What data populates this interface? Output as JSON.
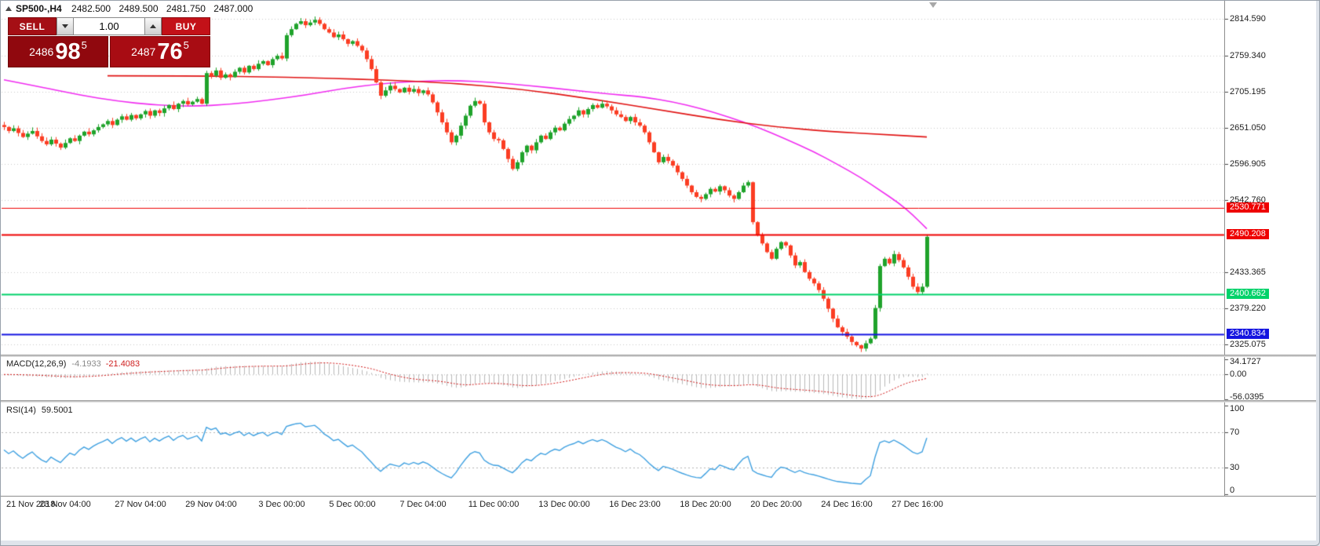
{
  "window": {
    "symbol_title": "SP500-,H4",
    "ohlc": {
      "open": "2482.500",
      "high": "2489.500",
      "low": "2481.750",
      "close": "2487.000"
    }
  },
  "one_click": {
    "sell_label": "SELL",
    "buy_label": "BUY",
    "volume": "1.00",
    "sell_price": {
      "prefix": "2486",
      "big": "98",
      "sup": "5"
    },
    "buy_price": {
      "prefix": "2487",
      "big": "76",
      "sup": "5"
    },
    "sell_color": "#a50f15",
    "buy_color": "#c31118"
  },
  "chart_data": {
    "type": "candlestick",
    "symbol": "SP500-",
    "timeframe": "H4",
    "price_axis": {
      "view_max": 2840.5,
      "view_min": 2310.0,
      "ticks": [
        "2814.590",
        "2759.340",
        "2705.195",
        "2651.050",
        "2596.905",
        "2542.760",
        "2433.365",
        "2379.220",
        "2325.075"
      ]
    },
    "candles": {
      "first_open": 2655,
      "up_color": "#1fa32b",
      "down_color": "#fb3d23",
      "closes": [
        2652,
        2646,
        2650,
        2643,
        2637,
        2642,
        2646,
        2638,
        2631,
        2626,
        2633,
        2627,
        2621,
        2628,
        2635,
        2631,
        2639,
        2645,
        2641,
        2647,
        2652,
        2656,
        2661,
        2655,
        2663,
        2668,
        2663,
        2670,
        2665,
        2671,
        2676,
        2669,
        2677,
        2673,
        2680,
        2685,
        2679,
        2687,
        2691,
        2686,
        2690,
        2694,
        2687,
        2733,
        2729,
        2737,
        2726,
        2731,
        2727,
        2735,
        2741,
        2734,
        2744,
        2739,
        2747,
        2751,
        2745,
        2754,
        2759,
        2755,
        2790,
        2799,
        2807,
        2811,
        2805,
        2809,
        2813,
        2807,
        2799,
        2794,
        2787,
        2791,
        2784,
        2777,
        2781,
        2774,
        2767,
        2754,
        2739,
        2719,
        2699,
        2707,
        2714,
        2709,
        2704,
        2711,
        2705,
        2709,
        2703,
        2707,
        2701,
        2689,
        2674,
        2659,
        2644,
        2629,
        2639,
        2654,
        2669,
        2684,
        2691,
        2687,
        2659,
        2644,
        2634,
        2632,
        2619,
        2604,
        2589,
        2599,
        2614,
        2624,
        2617,
        2629,
        2639,
        2634,
        2644,
        2651,
        2647,
        2657,
        2664,
        2669,
        2677,
        2671,
        2679,
        2685,
        2681,
        2687,
        2683,
        2677,
        2671,
        2667,
        2661,
        2667,
        2659,
        2654,
        2644,
        2629,
        2614,
        2599,
        2607,
        2601,
        2594,
        2584,
        2574,
        2564,
        2554,
        2547,
        2544,
        2551,
        2559,
        2555,
        2563,
        2557,
        2549,
        2544,
        2554,
        2564,
        2569,
        2509,
        2489,
        2477,
        2464,
        2454,
        2469,
        2479,
        2474,
        2459,
        2444,
        2449,
        2434,
        2424,
        2417,
        2407,
        2394,
        2379,
        2364,
        2351,
        2344,
        2337,
        2329,
        2324,
        2319,
        2327,
        2334,
        2380,
        2443,
        2454,
        2447,
        2461,
        2452,
        2441,
        2427,
        2412,
        2404,
        2412,
        2487
      ]
    },
    "h_lines": [
      {
        "price": 2530.771,
        "label": "2530.771",
        "color": "#ee0000",
        "width": 1
      },
      {
        "price": 2490.208,
        "label": "2490.208",
        "color": "#ee0000",
        "width": 2
      },
      {
        "price": 2400.662,
        "label": "2400.662",
        "color": "#00d26a",
        "width": 2
      },
      {
        "price": 2340.834,
        "label": "2340.834",
        "color": "#1414e0",
        "width": 2
      }
    ],
    "ma_lines": [
      {
        "name": "ma-fast-magenta",
        "color": "#f02cf0",
        "width": 1.6,
        "points": [
          [
            0,
            2723
          ],
          [
            8,
            2712
          ],
          [
            16,
            2700
          ],
          [
            24,
            2691
          ],
          [
            32,
            2685
          ],
          [
            40,
            2683
          ],
          [
            48,
            2686
          ],
          [
            56,
            2692
          ],
          [
            64,
            2700
          ],
          [
            72,
            2710
          ],
          [
            80,
            2717
          ],
          [
            88,
            2721
          ],
          [
            96,
            2722
          ],
          [
            104,
            2719
          ],
          [
            112,
            2714
          ],
          [
            120,
            2708
          ],
          [
            128,
            2702
          ],
          [
            136,
            2697
          ],
          [
            142,
            2690
          ],
          [
            148,
            2680
          ],
          [
            154,
            2667
          ],
          [
            160,
            2652
          ],
          [
            166,
            2634
          ],
          [
            172,
            2615
          ],
          [
            177,
            2596
          ],
          [
            182,
            2576
          ],
          [
            186,
            2557
          ],
          [
            190,
            2538
          ],
          [
            193,
            2520
          ],
          [
            196,
            2499
          ]
        ]
      },
      {
        "name": "ma-slow-red",
        "color": "#e01414",
        "width": 1.6,
        "points": [
          [
            22,
            2729
          ],
          [
            40,
            2729
          ],
          [
            60,
            2727
          ],
          [
            80,
            2723
          ],
          [
            95,
            2718
          ],
          [
            110,
            2709
          ],
          [
            125,
            2694
          ],
          [
            140,
            2677
          ],
          [
            152,
            2663
          ],
          [
            164,
            2652
          ],
          [
            176,
            2645
          ],
          [
            186,
            2641
          ],
          [
            196,
            2637
          ]
        ]
      }
    ],
    "time_axis": [
      {
        "i": 0,
        "label": "21 Nov 2018"
      },
      {
        "i": 13,
        "label": "23 Nov 04:00"
      },
      {
        "i": 29,
        "label": "27 Nov 04:00"
      },
      {
        "i": 44,
        "label": "29 Nov 04:00"
      },
      {
        "i": 59,
        "label": "3 Dec 00:00"
      },
      {
        "i": 74,
        "label": "5 Dec 00:00"
      },
      {
        "i": 89,
        "label": "7 Dec 04:00"
      },
      {
        "i": 104,
        "label": "11 Dec 00:00"
      },
      {
        "i": 119,
        "label": "13 Dec 00:00"
      },
      {
        "i": 134,
        "label": "16 Dec 23:00"
      },
      {
        "i": 149,
        "label": "18 Dec 20:00"
      },
      {
        "i": 164,
        "label": "20 Dec 20:00"
      },
      {
        "i": 179,
        "label": "24 Dec 16:00"
      },
      {
        "i": 194,
        "label": "27 Dec 16:00"
      }
    ],
    "macd": {
      "label": "MACD(12,26,9)",
      "value_main": "-4.1933",
      "value_signal": "-21.4083",
      "params": [
        12,
        26,
        9
      ],
      "axis_labels": [
        "34.1727",
        "0.00",
        "-56.0395"
      ],
      "range_min": -56.0395,
      "range_max": 34.1727,
      "hist_color": "#b9b9b9",
      "signal_color": "#d01818"
    },
    "rsi": {
      "label": "RSI(14)",
      "value": "59.5001",
      "period": 14,
      "axis_labels": [
        "100",
        "70",
        "30",
        "0"
      ],
      "levels": [
        70,
        30
      ],
      "line_color": "#3fa0e0"
    }
  }
}
